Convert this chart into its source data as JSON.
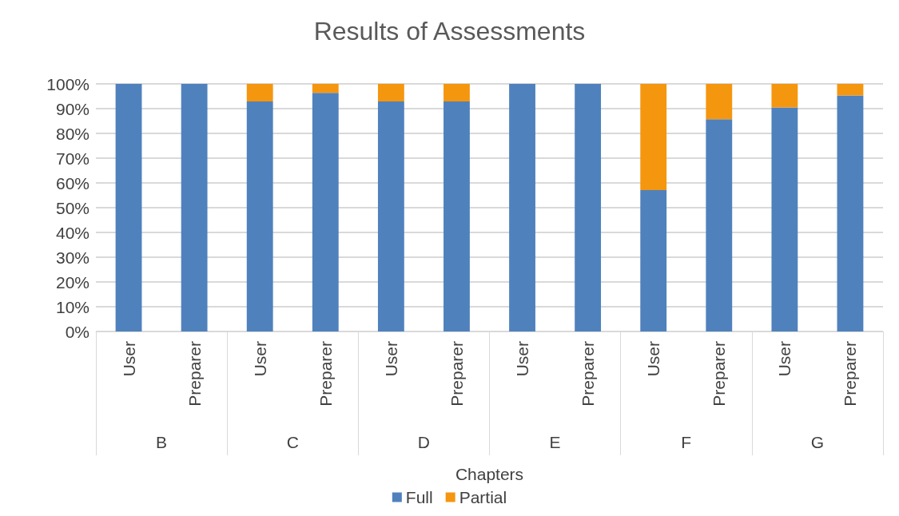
{
  "chart_data": {
    "type": "bar",
    "title": "Results of Assessments",
    "xlabel": "Chapters",
    "categories": [
      "User",
      "Preparer",
      "User",
      "Preparer",
      "User",
      "Preparer",
      "User",
      "Preparer",
      "User",
      "Preparer",
      "User",
      "Preparer"
    ],
    "annotations": [
      "B",
      "C",
      "D",
      "E",
      "F",
      "G"
    ],
    "stacked": true,
    "series": [
      {
        "name": "Full",
        "color": "#4f81bd",
        "values": [
          100,
          100,
          92.9,
          96.4,
          92.9,
          92.9,
          100,
          100,
          57.1,
          85.7,
          90.5,
          95.3
        ]
      },
      {
        "name": "Partial",
        "color": "#f5960f",
        "values": [
          0,
          0,
          7.1,
          3.6,
          7.1,
          7.1,
          0,
          0,
          42.9,
          14.3,
          9.5,
          4.7
        ]
      }
    ],
    "ylim": [
      0,
      100
    ],
    "yticks": [
      {
        "value": 0,
        "label": "0%"
      },
      {
        "value": 10,
        "label": "10%"
      },
      {
        "value": 20,
        "label": "20%"
      },
      {
        "value": 30,
        "label": "30%"
      },
      {
        "value": 40,
        "label": "40%"
      },
      {
        "value": 50,
        "label": "50%"
      },
      {
        "value": 60,
        "label": "60%"
      },
      {
        "value": 70,
        "label": "70%"
      },
      {
        "value": 80,
        "label": "80%"
      },
      {
        "value": 90,
        "label": "90%"
      },
      {
        "value": 100,
        "label": "100%"
      }
    ],
    "grid": "y",
    "legend": "bottom"
  }
}
